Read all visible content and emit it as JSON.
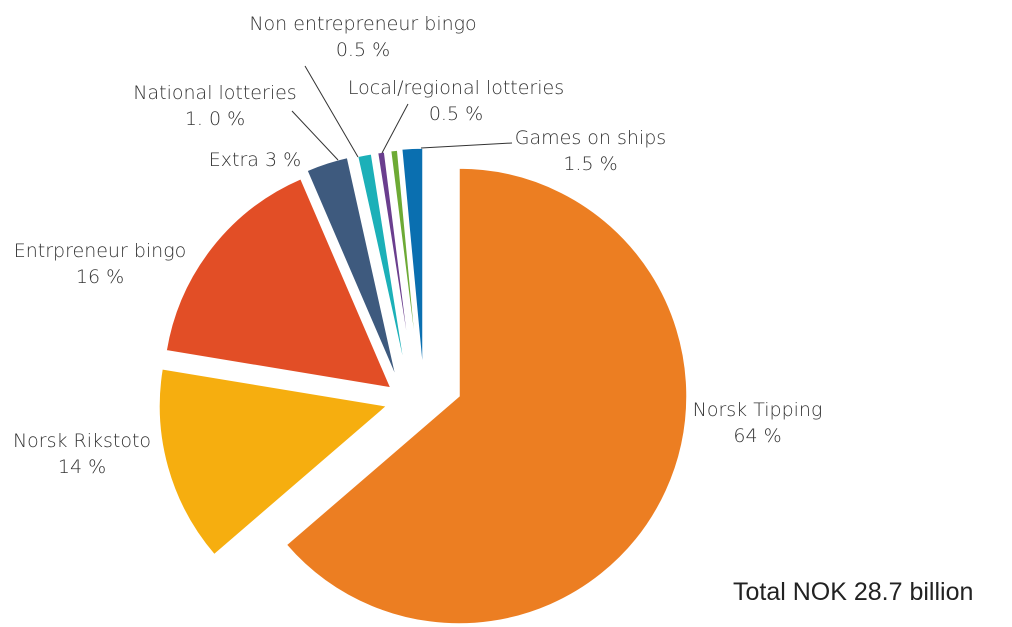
{
  "chart_data": {
    "type": "pie",
    "title": "",
    "total_label": "Total NOK 28.7 billion",
    "slices": [
      {
        "name": "Norsk Tipping",
        "value_label": "64 %",
        "value": 64,
        "color": "#EC7E22"
      },
      {
        "name": "Norsk Rikstoto",
        "value_label": "14 %",
        "value": 14,
        "color": "#F6AE0F"
      },
      {
        "name": "Entrpreneur bingo",
        "value_label": "16 %",
        "value": 16,
        "color": "#E24E26"
      },
      {
        "name": "Extra",
        "value_label": "3 %",
        "value": 3,
        "color": "#3E5A7E"
      },
      {
        "name": "National lotteries",
        "value_label": "1. 0 %",
        "value": 1.0,
        "color": "#1CB0B8"
      },
      {
        "name": "Non entrepreneur bingo",
        "value_label": "0.5 %",
        "value": 0.5,
        "color": "#6A3E8E"
      },
      {
        "name": "Local/regional lotteries",
        "value_label": "0.5 %",
        "value": 0.5,
        "color": "#6DAA35"
      },
      {
        "name": "Games on ships",
        "value_label": "1.5 %",
        "value": 1.5,
        "color": "#0A6FB0"
      }
    ]
  }
}
